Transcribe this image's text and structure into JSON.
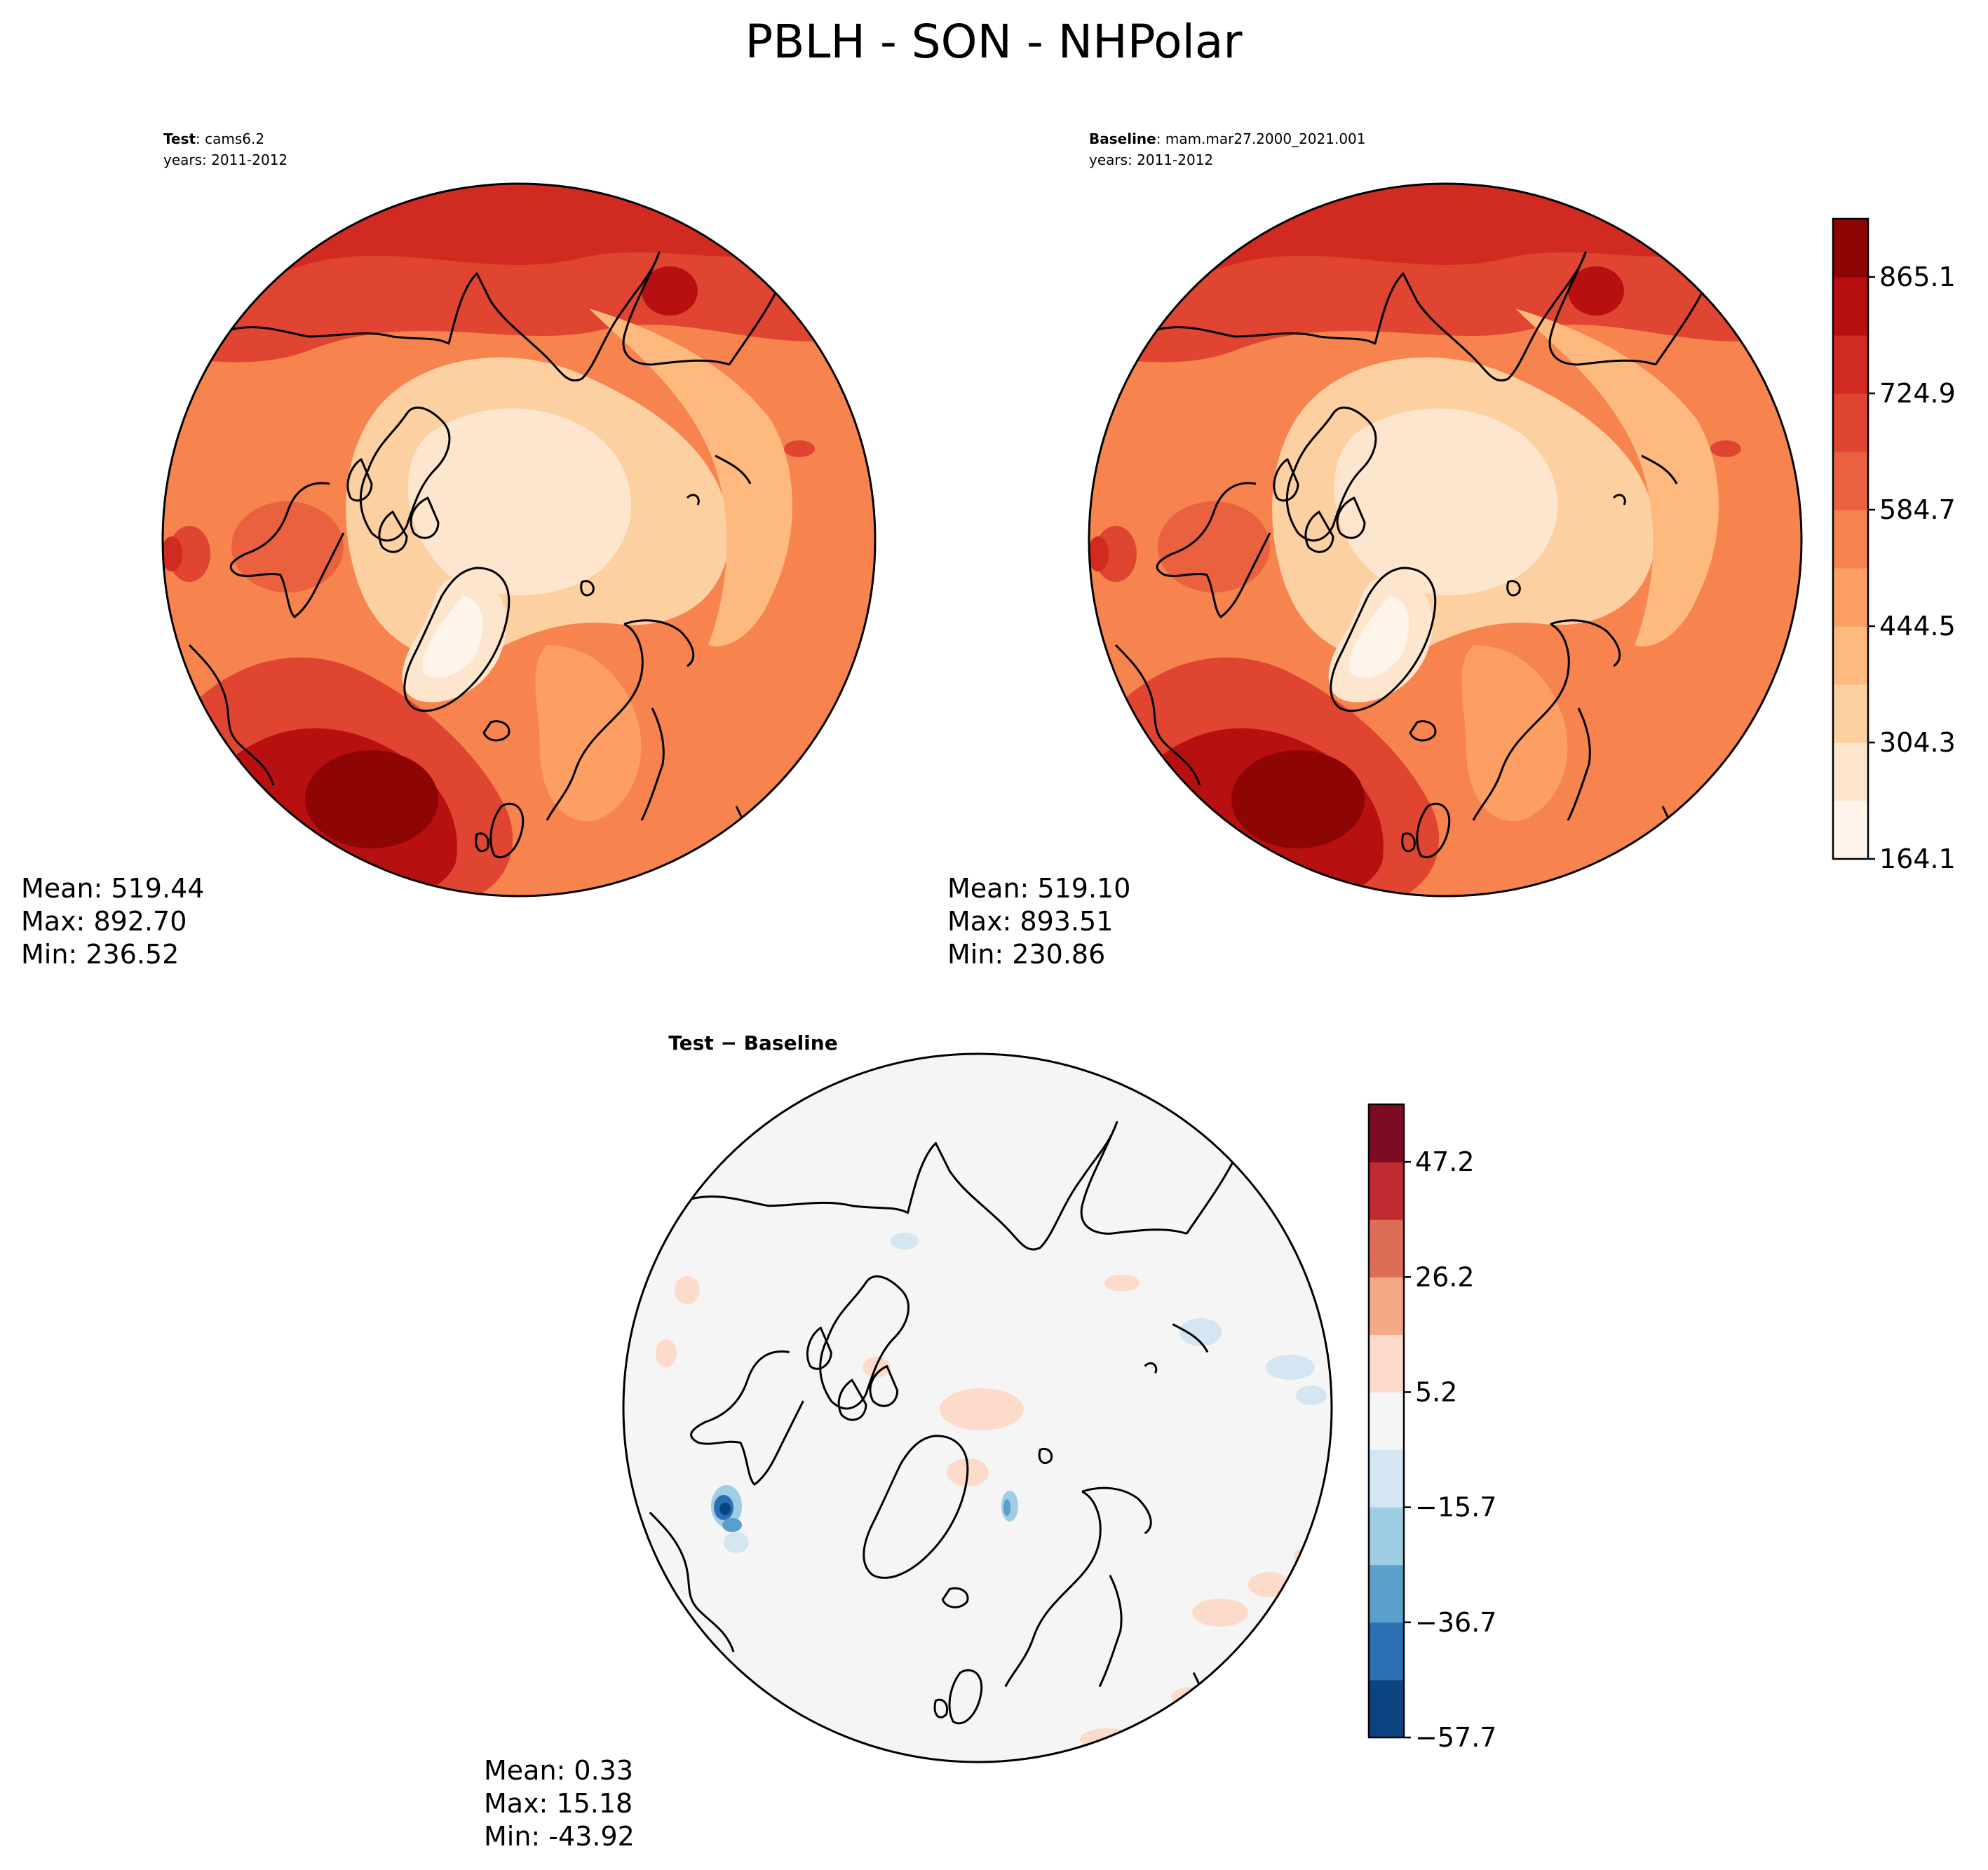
{
  "title": "PBLH - SON - NHPolar",
  "panels": [
    {
      "id": "test",
      "label_bold": "Test",
      "label_rest": ": cams6.2",
      "years": "years: 2011-2012",
      "stats": {
        "mean": "Mean: 519.44",
        "max": "Max: 892.70",
        "min": "Min: 236.52"
      }
    },
    {
      "id": "baseline",
      "label_bold": "Baseline",
      "label_rest": ": mam.mar27.2000_2021.001",
      "years": "years: 2011-2012",
      "stats": {
        "mean": "Mean: 519.10",
        "max": "Max: 893.51",
        "min": "Min: 230.86"
      }
    },
    {
      "id": "diff",
      "label": "Test − Baseline",
      "stats": {
        "mean": "Mean:  0.33",
        "max": "Max: 15.18",
        "min": "Min: -43.92"
      }
    }
  ],
  "colorbar_main": {
    "ticks": [
      "164.1",
      "304.3",
      "444.5",
      "584.7",
      "724.9",
      "865.1"
    ],
    "colors": [
      "#fff5eb",
      "#fee6ce",
      "#fdd0a2",
      "#fdb97e",
      "#fd9f63",
      "#f7834f",
      "#ea6140",
      "#df4530",
      "#d12a20",
      "#b81010",
      "#8d0505"
    ]
  },
  "colorbar_diff": {
    "ticks": [
      "−57.7",
      "−36.7",
      "−15.7",
      "5.2",
      "26.2",
      "47.2"
    ],
    "colors": [
      "#0b4481",
      "#2a6fb2",
      "#5aa0cc",
      "#9fcde3",
      "#d3e6f1",
      "#f5f5f5",
      "#fcdbcb",
      "#f4a886",
      "#dc6d57",
      "#c12a31",
      "#7d0b24"
    ]
  }
}
